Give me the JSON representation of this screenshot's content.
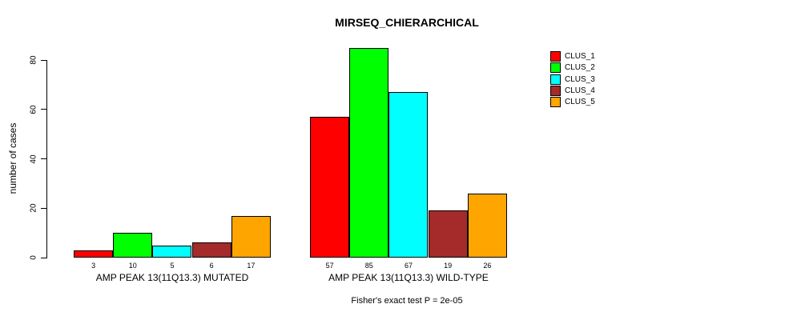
{
  "chart_data": {
    "type": "bar",
    "title": "MIRSEQ_CHIERARCHICAL",
    "ylabel": "number of cases",
    "xlabel": "",
    "yticks": [
      0,
      20,
      40,
      60,
      80
    ],
    "ylim": [
      0,
      85
    ],
    "grid": false,
    "legend_position": "top-right",
    "categories": [
      "AMP PEAK 13(11Q13.3) MUTATED",
      "AMP PEAK 13(11Q13.3) WILD-TYPE"
    ],
    "series": [
      {
        "name": "CLUS_1",
        "color": "#ff0000",
        "values": [
          3,
          57
        ]
      },
      {
        "name": "CLUS_2",
        "color": "#00ff00",
        "values": [
          10,
          85
        ]
      },
      {
        "name": "CLUS_3",
        "color": "#00ffff",
        "values": [
          5,
          67
        ]
      },
      {
        "name": "CLUS_4",
        "color": "#a52a2a",
        "values": [
          6,
          19
        ]
      },
      {
        "name": "CLUS_5",
        "color": "#ffa500",
        "values": [
          17,
          26
        ]
      }
    ],
    "bar_value_labels": [
      [
        3,
        10,
        5,
        6,
        17
      ],
      [
        57,
        85,
        67,
        19,
        26
      ]
    ],
    "annotation": "Fisher's exact test P = 2e-05"
  },
  "colors": {
    "background": "#ffffff",
    "axis": "#000000",
    "text": "#000000"
  }
}
